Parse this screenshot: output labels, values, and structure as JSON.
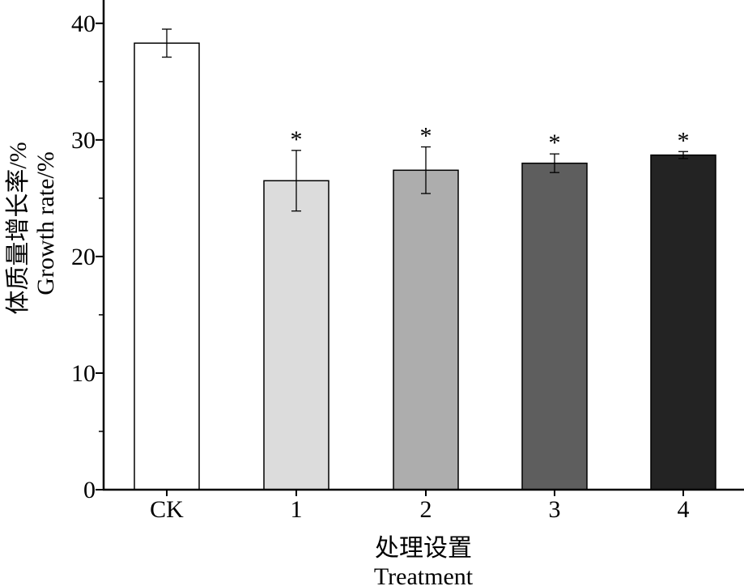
{
  "chart_data": {
    "type": "bar",
    "categories": [
      "CK",
      "1",
      "2",
      "3",
      "4"
    ],
    "values": [
      38.3,
      26.5,
      27.4,
      28.0,
      28.7
    ],
    "errors": [
      1.2,
      2.6,
      2.0,
      0.8,
      0.3
    ],
    "significance": [
      "",
      "*",
      "*",
      "*",
      "*"
    ],
    "bar_colors": [
      "#ffffff",
      "#dcdcdc",
      "#adadad",
      "#5e5e5e",
      "#232323"
    ],
    "ylim": [
      0,
      42
    ],
    "yticks": [
      0,
      10,
      20,
      30,
      40
    ],
    "ylabel_cn": "体质量增长率/%",
    "ylabel_en": "Growth rate/%",
    "xlabel_cn": "处理设置",
    "xlabel_en": "Treatment",
    "grid": false,
    "legend": "none"
  }
}
